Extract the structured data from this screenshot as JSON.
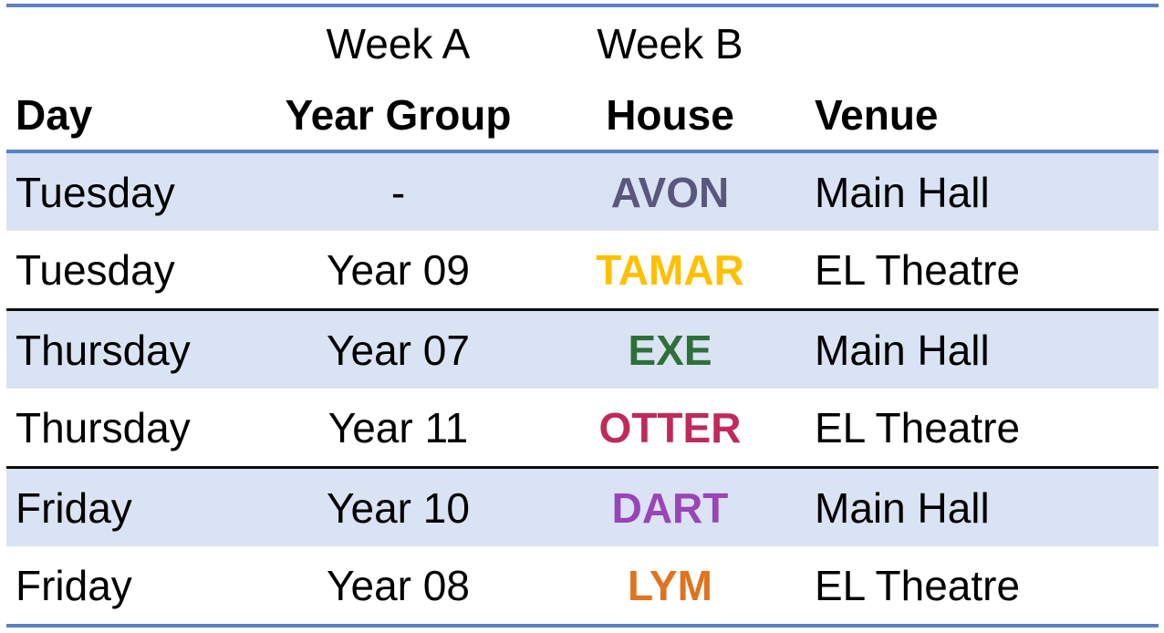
{
  "table": {
    "week_headers": {
      "week_a": "Week A",
      "week_b": "Week B"
    },
    "column_headers": {
      "day": "Day",
      "year_group": "Year Group",
      "house": "House",
      "venue": "Venue"
    },
    "rows": [
      {
        "day": "Tuesday",
        "year_group": "-",
        "house": "AVON",
        "house_color": "#5A577C",
        "venue": "Main Hall",
        "shaded": true,
        "separator_above": false
      },
      {
        "day": "Tuesday",
        "year_group": "Year 09",
        "house": "TAMAR",
        "house_color": "#FFC000",
        "venue": "EL Theatre",
        "shaded": false,
        "separator_above": false
      },
      {
        "day": "Thursday",
        "year_group": "Year 07",
        "house": "EXE",
        "house_color": "#2D7138",
        "venue": "Main Hall",
        "shaded": true,
        "separator_above": true
      },
      {
        "day": "Thursday",
        "year_group": "Year 11",
        "house": "OTTER",
        "house_color": "#C02A58",
        "venue": "EL Theatre",
        "shaded": false,
        "separator_above": false
      },
      {
        "day": "Friday",
        "year_group": "Year 10",
        "house": "DART",
        "house_color": "#9944B8",
        "venue": "Main Hall",
        "shaded": true,
        "separator_above": true
      },
      {
        "day": "Friday",
        "year_group": "Year 08",
        "house": "LYM",
        "house_color": "#E0731F",
        "venue": "EL Theatre",
        "shaded": false,
        "separator_above": false
      }
    ],
    "colors": {
      "row_shade": "#DAE3F3",
      "border_blue": "#5B82C7",
      "separator_black": "#0d0d0d",
      "text": "#000000"
    }
  }
}
